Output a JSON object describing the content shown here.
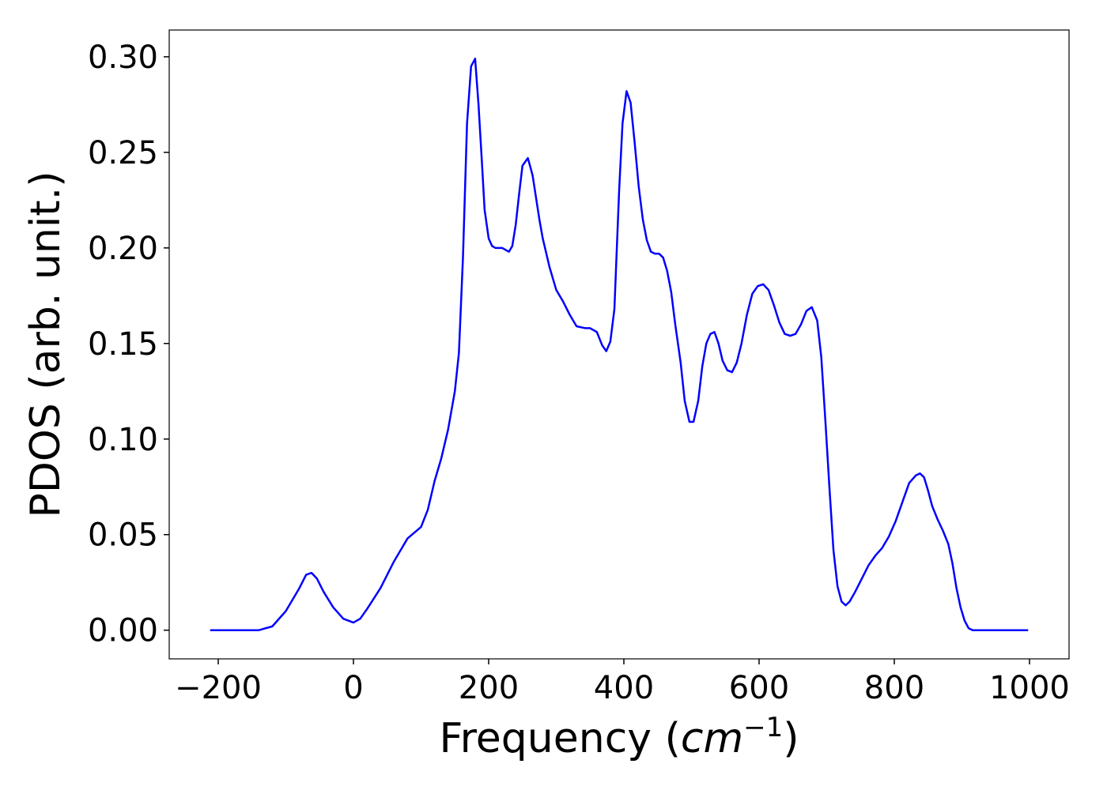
{
  "chart_data": {
    "type": "line",
    "xlabel_parts": [
      "Frequency (",
      "cm",
      "−1",
      ")"
    ],
    "ylabel": "PDOS (arb. unit.)",
    "xlim": [
      -272.5,
      1058.5
    ],
    "ylim": [
      -0.015,
      0.314
    ],
    "xticks": [
      {
        "value": -200,
        "label": "−200"
      },
      0,
      200,
      400,
      600,
      800,
      1000
    ],
    "yticks": [
      {
        "value": 0,
        "label": "0.00"
      },
      {
        "value": 0.05,
        "label": "0.05"
      },
      {
        "value": 0.1,
        "label": "0.10"
      },
      {
        "value": 0.15,
        "label": "0.15"
      },
      {
        "value": 0.2,
        "label": "0.20"
      },
      {
        "value": 0.25,
        "label": "0.25"
      },
      {
        "value": 0.3,
        "label": "0.30"
      }
    ],
    "grid": false,
    "series": [
      {
        "color": "#0000ff",
        "x": [
          -212,
          -140,
          -120,
          -100,
          -80,
          -70,
          -62,
          -54,
          -44,
          -30,
          -15,
          0,
          10,
          20,
          40,
          60,
          80,
          90,
          100,
          110,
          120,
          130,
          140,
          150,
          156,
          162,
          168,
          174,
          180,
          185,
          190,
          194,
          200,
          205,
          210,
          220,
          230,
          235,
          240,
          245,
          250,
          258,
          265,
          275,
          280,
          290,
          300,
          310,
          320,
          330,
          343,
          350,
          360,
          368,
          374,
          380,
          386,
          393,
          398,
          404,
          410,
          416,
          422,
          428,
          434,
          440,
          446,
          452,
          458,
          464,
          470,
          476,
          484,
          490,
          497,
          503,
          510,
          516,
          522,
          528,
          534,
          540,
          546,
          553,
          560,
          567,
          574,
          582,
          590,
          598,
          606,
          614,
          622,
          630,
          638,
          646,
          654,
          662,
          670,
          678,
          686,
          692,
          698,
          704,
          710,
          716,
          722,
          728,
          734,
          742,
          752,
          762,
          772,
          782,
          792,
          802,
          812,
          822,
          832,
          838,
          844,
          850,
          856,
          864,
          872,
          880,
          886,
          892,
          898,
          904,
          910,
          916,
          925,
          998
        ],
        "values": [
          0,
          0,
          0.002,
          0.01,
          0.022,
          0.029,
          0.03,
          0.027,
          0.02,
          0.012,
          0.006,
          0.004,
          0.006,
          0.011,
          0.022,
          0.036,
          0.048,
          0.051,
          0.054,
          0.063,
          0.078,
          0.09,
          0.105,
          0.125,
          0.145,
          0.195,
          0.265,
          0.295,
          0.299,
          0.275,
          0.245,
          0.22,
          0.205,
          0.201,
          0.2,
          0.2,
          0.198,
          0.201,
          0.212,
          0.228,
          0.243,
          0.247,
          0.238,
          0.215,
          0.205,
          0.19,
          0.178,
          0.172,
          0.165,
          0.159,
          0.158,
          0.158,
          0.156,
          0.149,
          0.146,
          0.151,
          0.168,
          0.23,
          0.265,
          0.282,
          0.276,
          0.255,
          0.232,
          0.215,
          0.204,
          0.198,
          0.197,
          0.197,
          0.195,
          0.188,
          0.177,
          0.16,
          0.14,
          0.12,
          0.109,
          0.109,
          0.12,
          0.138,
          0.15,
          0.155,
          0.156,
          0.15,
          0.141,
          0.136,
          0.135,
          0.14,
          0.15,
          0.165,
          0.176,
          0.18,
          0.181,
          0.178,
          0.17,
          0.161,
          0.155,
          0.154,
          0.155,
          0.16,
          0.167,
          0.169,
          0.162,
          0.143,
          0.11,
          0.075,
          0.042,
          0.023,
          0.015,
          0.013,
          0.015,
          0.02,
          0.027,
          0.034,
          0.039,
          0.043,
          0.049,
          0.057,
          0.067,
          0.077,
          0.081,
          0.082,
          0.08,
          0.073,
          0.065,
          0.058,
          0.052,
          0.045,
          0.035,
          0.022,
          0.012,
          0.005,
          0.001,
          0,
          0,
          0
        ]
      }
    ]
  }
}
